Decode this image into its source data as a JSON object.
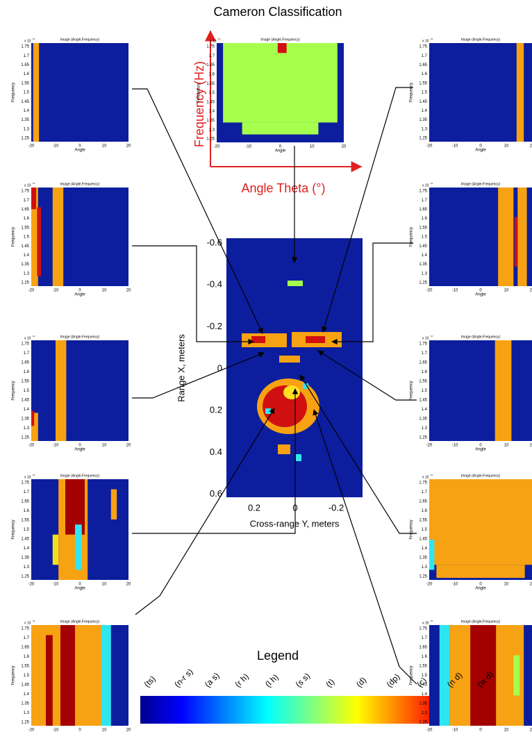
{
  "title": "Cameron Classification",
  "axis_arrows": {
    "y_label": "Frequency (Hz)",
    "x_label": "Angle Theta (°)"
  },
  "panel": {
    "title": "Image (Angle,Frequency)",
    "exponent": "x 10",
    "exponent_power": "10",
    "y_label": "Frequency",
    "x_label": "Angle",
    "yticks": [
      "1.75",
      "1.7",
      "1.65",
      "1.6",
      "1.55",
      "1.5",
      "1.45",
      "1.4",
      "1.35",
      "1.3",
      "1.25"
    ],
    "xticks": [
      "-20",
      "-10",
      "0",
      "10",
      "20"
    ]
  },
  "center": {
    "y_label": "Range X, meters",
    "x_label": "Cross-range Y, meters",
    "yticks": [
      "-0.6",
      "-0.4",
      "-0.2",
      "0",
      "0.2",
      "0.4",
      "0.6"
    ],
    "xticks": [
      "0.2",
      "0",
      "-0.2"
    ]
  },
  "legend": {
    "title": "Legend",
    "labels": [
      "(ts)",
      "(n-r s)",
      "(a s)",
      "(r h)",
      "(l h)",
      "(s s)",
      "(t)",
      "(d)",
      "(dp)",
      "(c)",
      "(n d)",
      "(w d)"
    ]
  }
}
